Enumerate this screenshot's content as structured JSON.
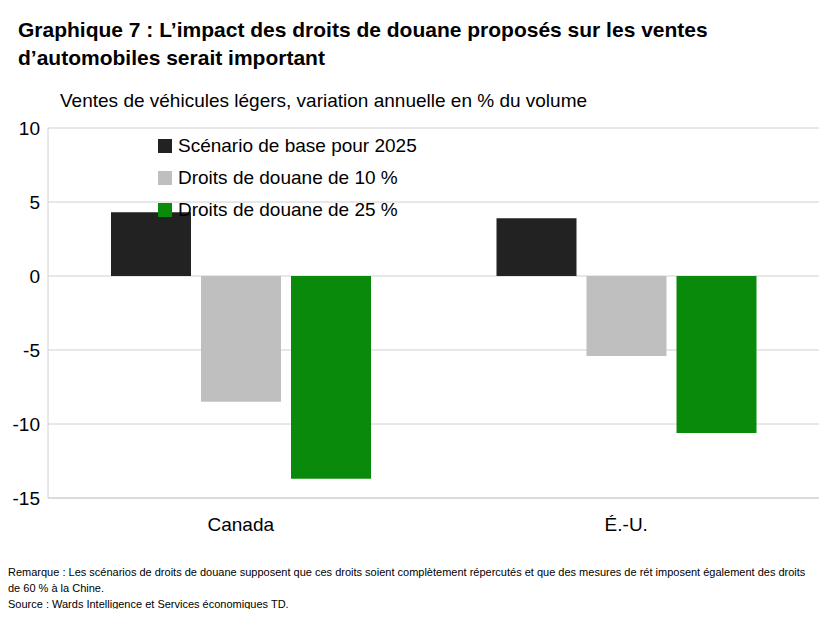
{
  "chart_data": {
    "type": "bar",
    "title": "Graphique 7 : L’impact des droits de douane proposés sur les ventes d’automobiles serait important",
    "subtitle": "Ventes de véhicules légers, variation annuelle en % du volume",
    "categories": [
      "Canada",
      "É.-U."
    ],
    "series": [
      {
        "name": "Scénario de base pour 2025",
        "color": "#222222",
        "values": [
          4.3,
          3.9
        ]
      },
      {
        "name": "Droits de douane de 10 %",
        "color": "#bfbfbf",
        "values": [
          -8.5,
          -5.4
        ]
      },
      {
        "name": "Droits de douane de 25 %",
        "color": "#0a8a0a",
        "values": [
          -13.7,
          -10.6
        ]
      }
    ],
    "ylim": [
      -15,
      10
    ],
    "yticks": [
      -15,
      -10,
      -5,
      0,
      5,
      10
    ],
    "grid": true,
    "legend": "upper left",
    "notes": [
      "Remarque : Les scénarios de droits de douane supposent que ces droits soient complètement répercutés et que des mesures de rét imposent également des droits de 60 % à la Chine.",
      "Source : Wards Intelligence et Services économiques TD."
    ]
  }
}
